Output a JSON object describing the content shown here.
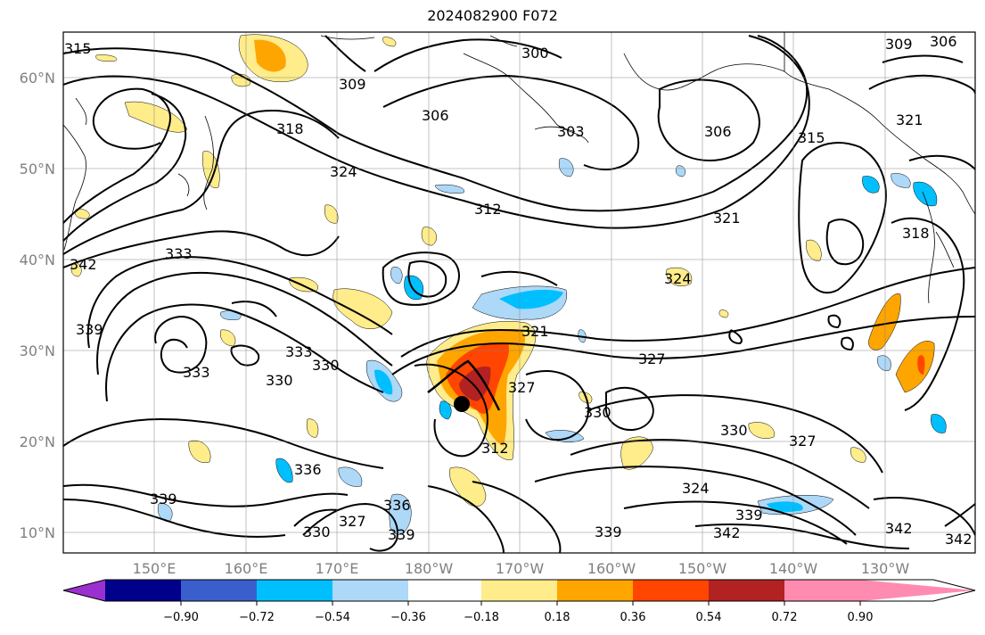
{
  "title": "2024082900 F072",
  "map": {
    "lat_labels": [
      "60°N",
      "50°N",
      "40°N",
      "30°N",
      "20°N",
      "10°N"
    ],
    "lon_labels": [
      "150°E",
      "160°E",
      "170°E",
      "180°W",
      "170°W",
      "160°W",
      "150°W",
      "140°W",
      "130°W"
    ],
    "contour_labels": [
      "315",
      "300",
      "306",
      "309",
      "309",
      "306",
      "303",
      "306",
      "318",
      "324",
      "312",
      "321",
      "315",
      "321",
      "318",
      "333",
      "342",
      "339",
      "324",
      "321",
      "330",
      "333",
      "330",
      "333",
      "327",
      "327",
      "330",
      "330",
      "327",
      "336",
      "339",
      "336",
      "324",
      "327",
      "330",
      "339",
      "339",
      "342",
      "339",
      "342",
      "342",
      "312"
    ],
    "marker": "storm-position-dot"
  },
  "colorbar": {
    "tick_labels": [
      "−0.90",
      "−0.72",
      "−0.54",
      "−0.36",
      "−0.18",
      "0.18",
      "0.36",
      "0.54",
      "0.72",
      "0.90"
    ],
    "colors": [
      "#9b30d0",
      "#00008b",
      "#3a5fcd",
      "#00bfff",
      "#add8f7",
      "#ffffff",
      "#ffec8b",
      "#ffa500",
      "#ff4500",
      "#b22222",
      "#ff8cb0"
    ]
  }
}
